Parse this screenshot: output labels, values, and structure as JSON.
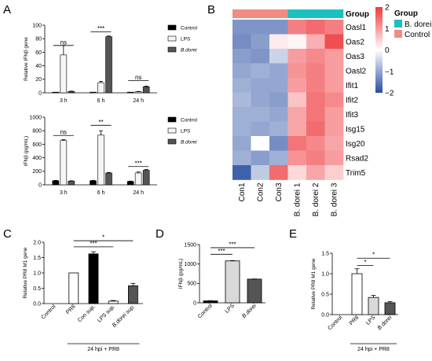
{
  "panels": {
    "A": "A",
    "B": "B",
    "C": "C",
    "D": "D",
    "E": "E"
  },
  "chart_data": [
    {
      "id": "A1",
      "type": "bar",
      "ylabel": "Relative IFNβ gene",
      "ylim": [
        0,
        100
      ],
      "yticks": [
        0,
        20,
        40,
        60,
        80,
        100
      ],
      "categories": [
        "3 h",
        "6 h",
        "24 h"
      ],
      "series": [
        {
          "name": "Control",
          "values": [
            1,
            1,
            1
          ],
          "errors": [
            0,
            0,
            0
          ],
          "color": "#000000"
        },
        {
          "name": "LPS",
          "values": [
            56,
            15,
            1.5
          ],
          "errors": [
            14,
            2,
            0.5
          ],
          "color": "#f5f5f5"
        },
        {
          "name": "B.dorei",
          "values": [
            2,
            83,
            9
          ],
          "errors": [
            0.5,
            1,
            1
          ],
          "color": "#555555"
        }
      ],
      "legend_position": "right",
      "significance": [
        {
          "category": 0,
          "from": 0,
          "to": 2,
          "label": "ns",
          "y": 70
        },
        {
          "category": 1,
          "from": 0,
          "to": 2,
          "label": "***",
          "y": 90
        },
        {
          "category": 2,
          "from": 0,
          "to": 2,
          "label": "ns",
          "y": 18
        }
      ]
    },
    {
      "id": "A2",
      "type": "bar",
      "ylabel": "IFNβ (pg/mL)",
      "ylim": [
        0,
        1000
      ],
      "yticks": [
        0,
        200,
        400,
        600,
        800,
        1000
      ],
      "categories": [
        "3 h",
        "6 h",
        "24 h"
      ],
      "series": [
        {
          "name": "Control",
          "values": [
            60,
            60,
            50
          ],
          "errors": [
            5,
            5,
            5
          ],
          "color": "#000000"
        },
        {
          "name": "LPS",
          "values": [
            655,
            735,
            175
          ],
          "errors": [
            12,
            65,
            15
          ],
          "color": "#f5f5f5"
        },
        {
          "name": "B.dorei",
          "values": [
            55,
            175,
            215
          ],
          "errors": [
            5,
            8,
            12
          ],
          "color": "#555555"
        }
      ],
      "legend_position": "right",
      "significance": [
        {
          "category": 0,
          "from": 0,
          "to": 2,
          "label": "ns",
          "y": 730
        },
        {
          "category": 1,
          "from": 0,
          "to": 2,
          "label": "**",
          "y": 880
        },
        {
          "category": 2,
          "from": 0,
          "to": 2,
          "label": "***",
          "y": 270
        }
      ]
    },
    {
      "id": "B",
      "type": "heatmap",
      "columns": [
        "Con1",
        "Con2",
        "Con3",
        "B. dorei 1",
        "B. dorei 2",
        "B. dorei 3"
      ],
      "rows": [
        "Oasl1",
        "Oas2",
        "Oas3",
        "Oasl2",
        "Ifit1",
        "Ifit2",
        "Ifit3",
        "Isg15",
        "Isg20",
        "Rsad2",
        "Trim5"
      ],
      "values": [
        [
          -1.2,
          -1.2,
          -1.2,
          1.3,
          1.5,
          1.3
        ],
        [
          -1.3,
          -1.1,
          0.2,
          0.1,
          0.8,
          1.8
        ],
        [
          -1.1,
          -1.2,
          -0.5,
          1.0,
          1.2,
          1.0
        ],
        [
          -1.0,
          -0.9,
          -1.0,
          1.1,
          1.3,
          1.0
        ],
        [
          -0.9,
          -1.0,
          -1.0,
          1.0,
          1.3,
          1.0
        ],
        [
          -0.8,
          -1.0,
          -1.1,
          0.6,
          1.4,
          1.2
        ],
        [
          -0.9,
          -0.9,
          -1.0,
          0.9,
          1.4,
          1.0
        ],
        [
          -0.9,
          -1.0,
          -0.9,
          0.9,
          1.5,
          1.0
        ],
        [
          -1.0,
          0.0,
          -1.3,
          1.4,
          1.2,
          0.9
        ],
        [
          -0.9,
          -1.1,
          -0.9,
          1.1,
          1.3,
          1.0
        ],
        [
          -1.8,
          -0.6,
          1.5,
          0.4,
          0.9,
          0.5
        ]
      ],
      "group_label": "Group",
      "groups": [
        {
          "name": "B. dorei",
          "color": "#1bc0c0"
        },
        {
          "name": "Control",
          "color": "#f08c84"
        }
      ],
      "column_groups": [
        "Control",
        "Control",
        "Control",
        "B. dorei",
        "B. dorei",
        "B. dorei"
      ],
      "scale": {
        "min": -2,
        "max": 2,
        "ticks": [
          2,
          1,
          0,
          -1,
          -2
        ],
        "tick_labels": [
          "2",
          "1",
          "0",
          "−1",
          "−2"
        ],
        "low_color": "#2a4fa3",
        "mid_color": "#ffffff",
        "high_color": "#ee3a3e"
      }
    },
    {
      "id": "C",
      "type": "bar",
      "ylabel": "Relative PR8 M1 gene",
      "ylim": [
        0,
        2.0
      ],
      "yticks": [
        0.0,
        0.5,
        1.0,
        1.5,
        2.0
      ],
      "ytick_labels": [
        "0.0",
        "0.5",
        "1.0",
        "1.5",
        "2.0"
      ],
      "categories": [
        "Control",
        "PR8",
        "Con sup.",
        "LPS sup.",
        "B.dorei sup."
      ],
      "values": [
        0,
        1.0,
        1.62,
        0.08,
        0.58
      ],
      "errors": [
        0,
        0,
        0.07,
        0.02,
        0.08
      ],
      "colors": [
        "#ffffff",
        "#ffffff",
        "#000000",
        "#ffffff",
        "#555555"
      ],
      "group_label": "24 hpi + PR8",
      "significance": [
        {
          "from": 1,
          "to": 3,
          "label": "***",
          "y": 1.85
        },
        {
          "from": 1,
          "to": 4,
          "label": "*",
          "y": 2.05
        }
      ]
    },
    {
      "id": "D",
      "type": "bar",
      "ylabel": "IFNβ (pg/mL)",
      "ylim": [
        0,
        1500
      ],
      "yticks": [
        0,
        500,
        1000,
        1500
      ],
      "categories": [
        "Control",
        "LPS",
        "B.dorei"
      ],
      "values": [
        50,
        1080,
        610
      ],
      "errors": [
        5,
        8,
        5
      ],
      "colors": [
        "#000000",
        "#d9d9d9",
        "#555555"
      ],
      "significance": [
        {
          "from": 0,
          "to": 1,
          "label": "***",
          "y": 1250
        },
        {
          "from": 0,
          "to": 2,
          "label": "***",
          "y": 1420
        }
      ]
    },
    {
      "id": "E",
      "type": "bar",
      "ylabel": "Relative PR8 M1 gene",
      "ylim": [
        0,
        1.5
      ],
      "yticks": [
        0.0,
        0.5,
        1.0,
        1.5
      ],
      "ytick_labels": [
        "0.0",
        "0.5",
        "1.0",
        "1.5"
      ],
      "categories": [
        "Control",
        "PR8",
        "LPS",
        "B.dorei"
      ],
      "values": [
        0,
        1.0,
        0.42,
        0.29
      ],
      "errors": [
        0,
        0.12,
        0.05,
        0.03
      ],
      "colors": [
        "#ffffff",
        "#ffffff",
        "#d9d9d9",
        "#555555"
      ],
      "group_label": "24 hpi + PR8",
      "significance": [
        {
          "from": 1,
          "to": 2,
          "label": "*",
          "y": 1.2
        },
        {
          "from": 1,
          "to": 3,
          "label": "*",
          "y": 1.38
        }
      ]
    }
  ]
}
